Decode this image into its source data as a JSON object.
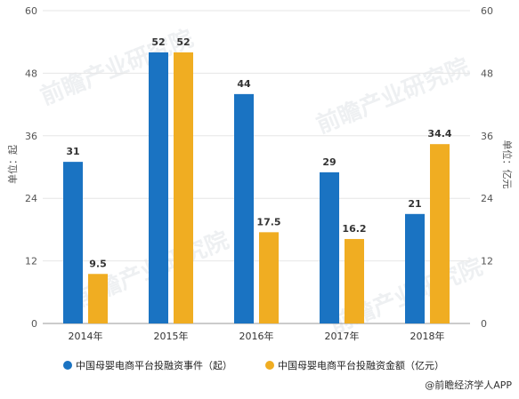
{
  "chart_data": {
    "type": "bar",
    "categories": [
      "2014年",
      "2015年",
      "2016年",
      "2017年",
      "2018年"
    ],
    "series": [
      {
        "name": "中国母婴电商平台投融资事件（起）",
        "axis": "left",
        "values": [
          31,
          52,
          44,
          29,
          21
        ],
        "labels": [
          "31",
          "52",
          "44",
          "29",
          "21"
        ],
        "color": "#1a73c2"
      },
      {
        "name": "中国母婴电商平台投融资金额（亿元）",
        "axis": "right",
        "values": [
          9.5,
          52,
          17.5,
          16.2,
          34.4
        ],
        "labels": [
          "9.5",
          "52",
          "17.5",
          "16.2",
          "34.4"
        ],
        "color": "#f0ad22"
      }
    ],
    "y_left": {
      "label": "单位：起",
      "range": [
        0,
        60
      ],
      "ticks": [
        "0",
        "12",
        "24",
        "36",
        "48",
        "60"
      ]
    },
    "y_right": {
      "label": "单位：亿元",
      "range": [
        0,
        60
      ],
      "ticks": [
        "0",
        "12",
        "24",
        "36",
        "48",
        "60"
      ]
    },
    "grid": true,
    "legend_position": "bottom"
  },
  "watermark": {
    "text": "前瞻产业研究院"
  },
  "source": {
    "label": "@前瞻经济学人APP"
  }
}
